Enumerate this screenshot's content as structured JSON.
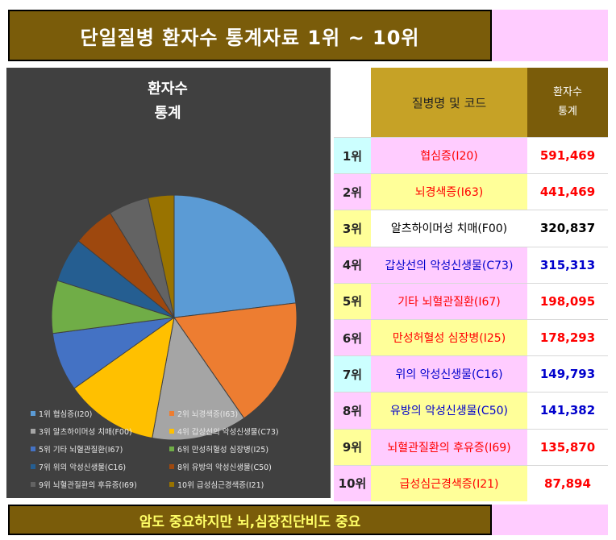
{
  "header": {
    "title": "단일질병 환자수 통계자료 1위 ~ 10위"
  },
  "footer": {
    "text": "암도 중요하지만 뇌,심장진단비도 중요"
  },
  "table": {
    "col_name": "질병명 및 코드",
    "col_value_line1": "환자수",
    "col_value_line2": "통계",
    "rows": [
      {
        "rank": "1위",
        "name": "협심증(I20)",
        "value": "591,469",
        "rank_bg": "#ccffff",
        "name_bg": "#ffccff",
        "name_color": "#ff0000",
        "value_color": "#ff0000"
      },
      {
        "rank": "2위",
        "name": "뇌경색증(I63)",
        "value": "441,469",
        "rank_bg": "#ffccff",
        "name_bg": "#ffff99",
        "name_color": "#ff0000",
        "value_color": "#ff0000"
      },
      {
        "rank": "3위",
        "name": "알츠하이머성 치매(F00)",
        "value": "320,837",
        "rank_bg": "#ffff99",
        "name_bg": "#ffffff",
        "name_color": "#000000",
        "value_color": "#000000"
      },
      {
        "rank": "4위",
        "name": "갑상선의 악성신생물(C73)",
        "value": "315,313",
        "rank_bg": "#ffccff",
        "name_bg": "#ffccff",
        "name_color": "#0000cc",
        "value_color": "#0000cc"
      },
      {
        "rank": "5위",
        "name": "기타 뇌혈관질환(I67)",
        "value": "198,095",
        "rank_bg": "#ffff99",
        "name_bg": "#ffccff",
        "name_color": "#ff0000",
        "value_color": "#ff0000"
      },
      {
        "rank": "6위",
        "name": "만성허혈성 심장병(I25)",
        "value": "178,293",
        "rank_bg": "#ffccff",
        "name_bg": "#ffff99",
        "name_color": "#ff0000",
        "value_color": "#ff0000"
      },
      {
        "rank": "7위",
        "name": "위의 악성신생물(C16)",
        "value": "149,793",
        "rank_bg": "#ccffff",
        "name_bg": "#ffccff",
        "name_color": "#0000cc",
        "value_color": "#0000cc"
      },
      {
        "rank": "8위",
        "name": "유방의 악성신생물(C50)",
        "value": "141,382",
        "rank_bg": "#ffccff",
        "name_bg": "#ffff99",
        "name_color": "#0000cc",
        "value_color": "#0000cc"
      },
      {
        "rank": "9위",
        "name": "뇌혈관질환의 후유증(I69)",
        "value": "135,870",
        "rank_bg": "#ffff99",
        "name_bg": "#ffccff",
        "name_color": "#ff0000",
        "value_color": "#ff0000"
      },
      {
        "rank": "10위",
        "name": "급성심근경색증(I21)",
        "value": "87,894",
        "rank_bg": "#ffccff",
        "name_bg": "#ffff99",
        "name_color": "#ff0000",
        "value_color": "#ff0000"
      }
    ]
  },
  "chart_data": {
    "type": "pie",
    "title_line1": "환자수",
    "title_line2": "통계",
    "legend_position": "bottom",
    "slices": [
      {
        "label": "1위 협심증(I20)",
        "value": 591469,
        "color": "#5b9bd5"
      },
      {
        "label": "2위 뇌경색증(I63)",
        "value": 441469,
        "color": "#ed7d31"
      },
      {
        "label": "3위 알츠하이머성 치매(F00)",
        "value": 320837,
        "color": "#a5a5a5"
      },
      {
        "label": "4위 갑상선의 악성신생물(C73)",
        "value": 315313,
        "color": "#ffc000"
      },
      {
        "label": "5위 기타 뇌혈관질환(I67)",
        "value": 198095,
        "color": "#4472c4"
      },
      {
        "label": "6위 만성허혈성 심장병(I25)",
        "value": 178293,
        "color": "#70ad47"
      },
      {
        "label": "7위 위의 악성신생물(C16)",
        "value": 149793,
        "color": "#255e91"
      },
      {
        "label": "8위 유방의 악성신생물(C50)",
        "value": 141382,
        "color": "#9e480e"
      },
      {
        "label": "9위 뇌혈관질환의 후유증(I69)",
        "value": 135870,
        "color": "#636363"
      },
      {
        "label": "10위 급성심근경색증(I21)",
        "value": 87894,
        "color": "#997300"
      }
    ]
  }
}
